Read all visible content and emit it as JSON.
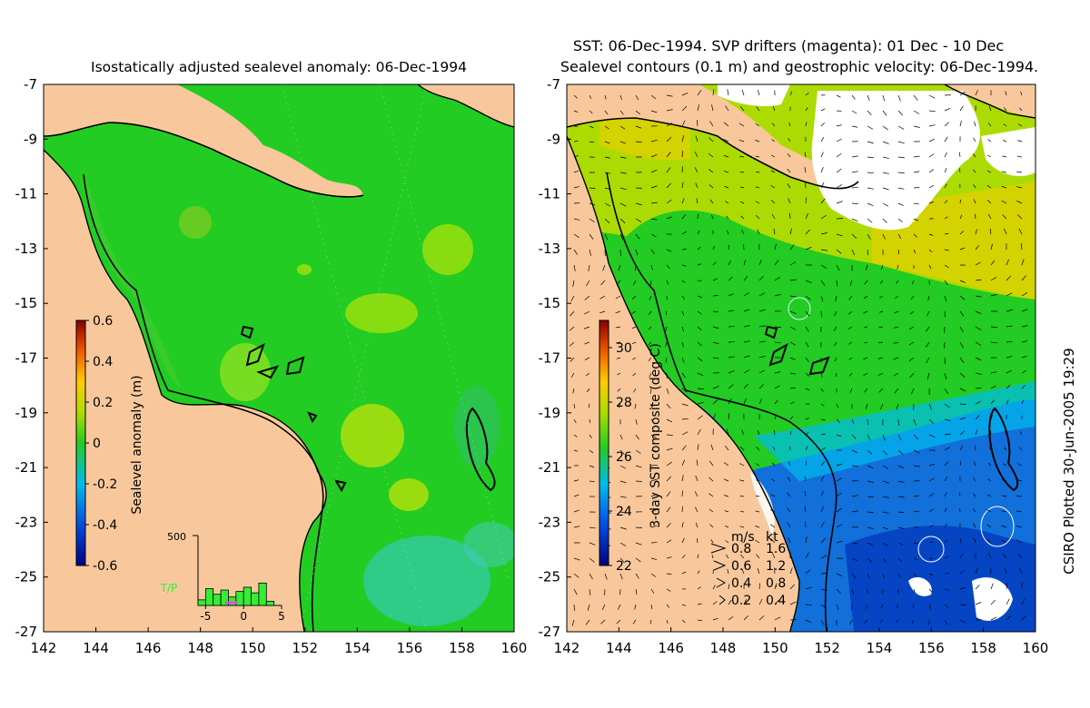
{
  "left_panel": {
    "title": "Isostatically adjusted sealevel anomaly: 06-Dec-1994"
  },
  "right_panel": {
    "title_line1": "SST: 06-Dec-1994. SVP drifters (magenta): 01 Dec - 10 Dec",
    "title_line2": "Sealevel contours (0.1 m) and geostrophic velocity: 06-Dec-1994."
  },
  "credit": "CSIRO Plotted 30-Jun-2005 19:29",
  "axes": {
    "lon_ticks": [
      "142",
      "144",
      "146",
      "148",
      "150",
      "152",
      "154",
      "156",
      "158",
      "160"
    ],
    "lat_ticks": [
      "-7",
      "-9",
      "-11",
      "-13",
      "-15",
      "-17",
      "-19",
      "-21",
      "-23",
      "-25",
      "-27"
    ],
    "lon_range": [
      142,
      160
    ],
    "lat_range": [
      -27,
      -7
    ]
  },
  "colors": {
    "land": "#f8c89c",
    "ocean_left": "#22cc22",
    "cloud": "#ffffff",
    "coast": "#000000"
  },
  "chart_data": [
    {
      "type": "heatmap",
      "title": "Isostatically adjusted sealevel anomaly: 06-Dec-1994",
      "colorbar": {
        "label": "Sealevel anomaly (m)",
        "range": [
          -0.6,
          0.6
        ],
        "ticks": [
          "0.6",
          "0.4",
          "0.2",
          "0",
          "-0.2",
          "-0.4",
          "-0.6"
        ]
      },
      "inset_histogram": {
        "type": "bar",
        "ytick": "500",
        "xticks": [
          "-5",
          "0",
          "5"
        ],
        "label": "T/P",
        "bins": [
          -5.5,
          -4.5,
          -3.5,
          -2.5,
          -1.5,
          -0.5,
          0.5,
          1.5,
          2.5,
          3.5
        ],
        "values": [
          40,
          120,
          80,
          110,
          60,
          100,
          130,
          90,
          160,
          30
        ]
      }
    },
    {
      "type": "heatmap",
      "title": "SST: 06-Dec-1994. SVP drifters (magenta): 01 Dec - 10 Dec",
      "colorbar": {
        "label": "3-day SST composite (deg C)",
        "range": [
          22,
          31
        ],
        "ticks": [
          "30",
          "28",
          "26",
          "24",
          "22"
        ]
      },
      "velocity_legend": {
        "header_units": [
          "m/s",
          "kt"
        ],
        "rows": [
          [
            "0.8",
            "1.6"
          ],
          [
            "0.6",
            "1.2"
          ],
          [
            "0.4",
            "0.8"
          ],
          [
            "0.2",
            "0.4"
          ]
        ]
      }
    }
  ]
}
